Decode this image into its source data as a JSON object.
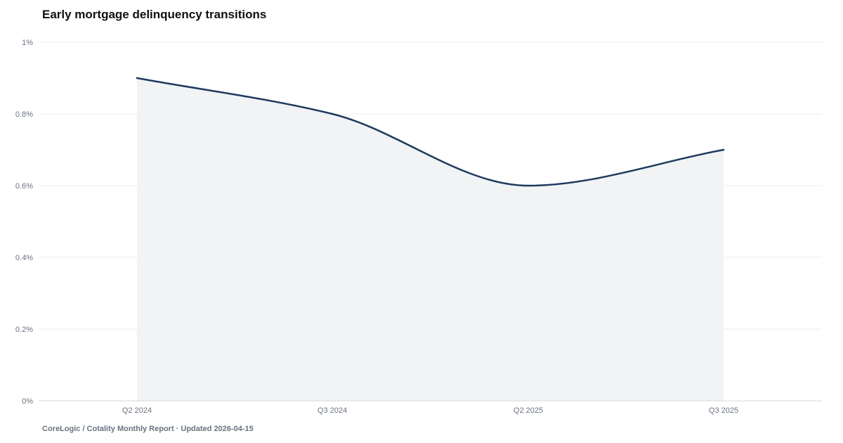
{
  "title": "Early mortgage delinquency transitions",
  "footer": "CoreLogic / Cotality Monthly Report · Updated 2026-04-15",
  "colors": {
    "line": "#1e3a5f",
    "area": "#f1f3f5",
    "grid": "#ececec",
    "axis": "#d8d8d8",
    "tick_text": "#6b7280"
  },
  "chart_data": {
    "type": "area",
    "title": "Early mortgage delinquency transitions",
    "xlabel": "",
    "ylabel": "",
    "categories": [
      "Q2 2024",
      "Q3 2024",
      "Q2 2025",
      "Q3 2025"
    ],
    "values": [
      0.9,
      0.8,
      0.6,
      0.7
    ],
    "unit": "%",
    "ylim": [
      0,
      1
    ],
    "yticks": [
      0,
      0.2,
      0.4,
      0.6,
      0.8,
      1
    ],
    "ytick_labels": [
      "0%",
      "0.2%",
      "0.4%",
      "0.6%",
      "0.8%",
      "1%"
    ],
    "grid": true,
    "legend": "none",
    "curve": "smooth"
  }
}
